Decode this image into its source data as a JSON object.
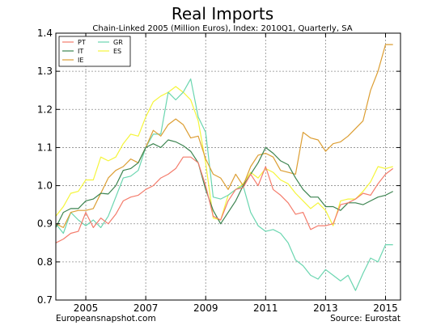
{
  "chart_data": {
    "type": "line",
    "title": "Real Imports",
    "subtitle": "Chain-Linked 2005 (Million Euros), Index: 2010Q1, Quarterly, SA",
    "xlabel": "",
    "ylabel": "",
    "xlim": [
      2004.0,
      2015.5
    ],
    "ylim": [
      0.7,
      1.4
    ],
    "x_tick_labels": [
      "2005",
      "2007",
      "2009",
      "2011",
      "2013",
      "2015"
    ],
    "y_tick_labels": [
      "0.7",
      "0.8",
      "0.9",
      "1.0",
      "1.1",
      "1.2",
      "1.3",
      "1.4"
    ],
    "grid": true,
    "legend_position": "top-left",
    "source_left": "Europeansnapshot.com",
    "source_right": "Source: Eurostat",
    "x": [
      2004.0,
      2004.25,
      2004.5,
      2004.75,
      2005.0,
      2005.25,
      2005.5,
      2005.75,
      2006.0,
      2006.25,
      2006.5,
      2006.75,
      2007.0,
      2007.25,
      2007.5,
      2007.75,
      2008.0,
      2008.25,
      2008.5,
      2008.75,
      2009.0,
      2009.25,
      2009.5,
      2009.75,
      2010.0,
      2010.25,
      2010.5,
      2010.75,
      2011.0,
      2011.25,
      2011.5,
      2011.75,
      2012.0,
      2012.25,
      2012.5,
      2012.75,
      2013.0,
      2013.25,
      2013.5,
      2013.75,
      2014.0,
      2014.25,
      2014.5,
      2014.75,
      2015.0,
      2015.25
    ],
    "series": [
      {
        "name": "PT",
        "color": "#f47c6c",
        "values": [
          0.85,
          0.86,
          0.875,
          0.88,
          0.93,
          0.89,
          0.915,
          0.9,
          0.925,
          0.96,
          0.97,
          0.975,
          0.99,
          1.0,
          1.02,
          1.03,
          1.045,
          1.075,
          1.075,
          1.06,
          1.0,
          0.92,
          0.91,
          0.96,
          0.99,
          0.995,
          1.03,
          1.0,
          1.05,
          0.99,
          0.975,
          0.955,
          0.925,
          0.93,
          0.885,
          0.895,
          0.895,
          0.9,
          0.95,
          0.955,
          0.965,
          0.98,
          0.975,
          1.005,
          1.03,
          1.045
        ]
      },
      {
        "name": "IT",
        "color": "#3c8450",
        "values": [
          0.89,
          0.93,
          0.94,
          0.94,
          0.96,
          0.965,
          0.98,
          0.978,
          1.0,
          1.04,
          1.045,
          1.06,
          1.1,
          1.11,
          1.1,
          1.12,
          1.115,
          1.105,
          1.09,
          1.06,
          0.99,
          0.935,
          0.9,
          0.93,
          0.96,
          1.0,
          1.03,
          1.06,
          1.1,
          1.085,
          1.065,
          1.055,
          1.02,
          0.99,
          0.97,
          0.97,
          0.945,
          0.945,
          0.935,
          0.955,
          0.955,
          0.95,
          0.96,
          0.97,
          0.975,
          0.985
        ]
      },
      {
        "name": "IE",
        "color": "#dc9e33",
        "values": [
          0.9,
          0.89,
          0.93,
          0.935,
          0.935,
          0.94,
          0.98,
          1.02,
          1.04,
          1.05,
          1.07,
          1.06,
          1.1,
          1.145,
          1.13,
          1.16,
          1.175,
          1.16,
          1.125,
          1.13,
          1.07,
          1.03,
          1.02,
          0.99,
          1.03,
          1.0,
          1.05,
          1.08,
          1.085,
          1.075,
          1.04,
          1.035,
          1.03,
          1.14,
          1.125,
          1.12,
          1.09,
          1.11,
          1.115,
          1.13,
          1.15,
          1.17,
          1.25,
          1.3,
          1.37,
          1.37
        ]
      },
      {
        "name": "GR",
        "color": "#6bd6b0",
        "values": [
          0.9,
          0.875,
          0.93,
          0.91,
          0.895,
          0.91,
          0.89,
          0.92,
          0.97,
          1.02,
          1.025,
          1.04,
          1.1,
          1.135,
          1.135,
          1.245,
          1.225,
          1.245,
          1.28,
          1.18,
          1.14,
          0.97,
          0.965,
          0.975,
          0.99,
          1.0,
          0.93,
          0.895,
          0.88,
          0.885,
          0.875,
          0.85,
          0.805,
          0.79,
          0.765,
          0.755,
          0.78,
          0.765,
          0.75,
          0.765,
          0.725,
          0.77,
          0.81,
          0.8,
          0.845,
          0.845
        ]
      },
      {
        "name": "ES",
        "color": "#f5f53a",
        "values": [
          0.92,
          0.945,
          0.98,
          0.985,
          1.015,
          1.015,
          1.075,
          1.065,
          1.075,
          1.11,
          1.135,
          1.13,
          1.18,
          1.22,
          1.235,
          1.245,
          1.26,
          1.245,
          1.225,
          1.17,
          1.06,
          0.915,
          0.91,
          0.975,
          0.99,
          1.005,
          1.035,
          1.02,
          1.045,
          1.035,
          1.015,
          1.005,
          0.98,
          0.96,
          0.94,
          0.955,
          0.935,
          0.895,
          0.96,
          0.965,
          0.965,
          0.985,
          1.01,
          1.05,
          1.045,
          1.05
        ]
      }
    ]
  }
}
